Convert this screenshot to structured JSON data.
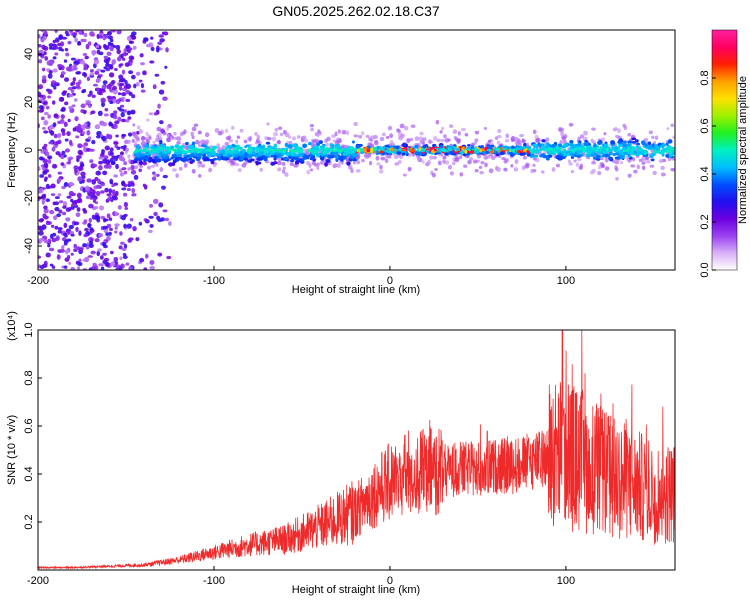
{
  "title": "GN05.2025.262.02.18.C37",
  "chart_data": [
    {
      "type": "heatmap",
      "name": "spectrogram",
      "xlabel": "Height of straight line (km)",
      "ylabel": "Frequency (Hz)",
      "xlim": [
        -200,
        162
      ],
      "ylim": [
        -50,
        50
      ],
      "xticks": [
        "-200",
        "-100",
        "0",
        "100"
      ],
      "xtick_values": [
        -200,
        -100,
        0,
        100
      ],
      "yticks": [
        "-40",
        "-20",
        "0",
        "20",
        "40"
      ],
      "ytick_values": [
        -40,
        -20,
        0,
        20,
        40
      ],
      "colorbar": {
        "label": "Normalized spectral amplitude",
        "range": [
          0,
          1
        ],
        "ticks": [
          "0.0",
          "0.2",
          "0.4",
          "0.6",
          "0.8"
        ],
        "tick_values": [
          0.0,
          0.2,
          0.4,
          0.6,
          0.8
        ],
        "colors": [
          "#ffffff",
          "#d8b0f8",
          "#9a40f0",
          "#6a00e0",
          "#2010f0",
          "#0050ff",
          "#00c0ff",
          "#00f0c0",
          "#20f020",
          "#a0f000",
          "#ffe000",
          "#ffa000",
          "#ff2000",
          "#ff0060",
          "#ff20a0"
        ]
      },
      "features": {
        "noise_region_x": [
          -200,
          -145
        ],
        "band_center_hz": 0,
        "band_halfwidth_hz": [
          -12,
          8
        ],
        "peak_region_x": [
          -20,
          80
        ]
      }
    },
    {
      "type": "line",
      "name": "snr",
      "xlabel": "Height of straight line (km)",
      "ylabel": "SNR (10 * v/v)",
      "multiplier": "(x10⁴)",
      "xlim": [
        -200,
        162
      ],
      "ylim": [
        0,
        1.0
      ],
      "xticks": [
        "-200",
        "-100",
        "0",
        "100"
      ],
      "xtick_values": [
        -200,
        -100,
        0,
        100
      ],
      "yticks": [
        "0.2",
        "0.4",
        "0.6",
        "0.8",
        "1.0"
      ],
      "ytick_values": [
        0.2,
        0.4,
        0.6,
        0.8,
        1.0
      ],
      "series": [
        {
          "name": "SNR",
          "color": "#ee2a2a",
          "x": [
            -200,
            -180,
            -160,
            -140,
            -120,
            -100,
            -80,
            -60,
            -40,
            -20,
            -10,
            0,
            10,
            20,
            30,
            40,
            50,
            60,
            70,
            80,
            90,
            100,
            110,
            120,
            130,
            140,
            150,
            160
          ],
          "values": [
            0.01,
            0.01,
            0.015,
            0.02,
            0.04,
            0.07,
            0.1,
            0.12,
            0.17,
            0.23,
            0.3,
            0.35,
            0.38,
            0.39,
            0.4,
            0.41,
            0.41,
            0.42,
            0.42,
            0.44,
            0.45,
            0.45,
            0.42,
            0.38,
            0.35,
            0.33,
            0.3,
            0.3
          ],
          "peak": {
            "x": 98,
            "value": 1.0
          }
        }
      ]
    }
  ]
}
